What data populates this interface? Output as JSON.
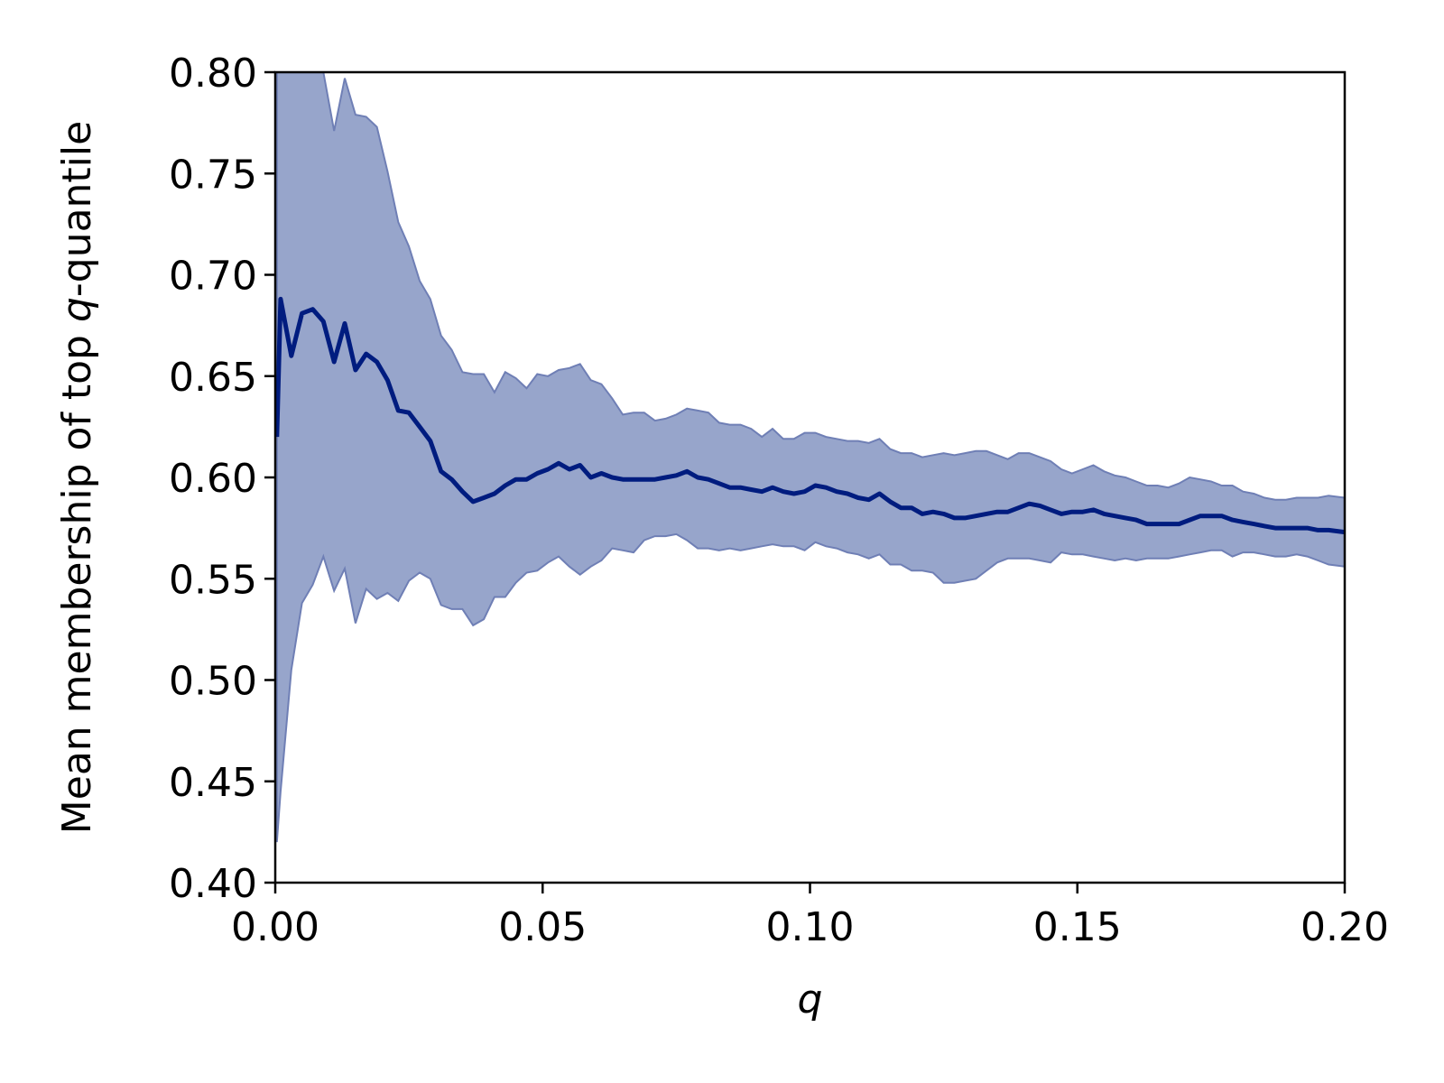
{
  "chart_data": {
    "type": "line",
    "title": "",
    "xlabel": "q",
    "ylabel_parts": [
      "Mean membership of top ",
      "q",
      "-quantile"
    ],
    "xlim": [
      0.0,
      0.2
    ],
    "ylim": [
      0.4,
      0.8
    ],
    "x_ticks": [
      "0.00",
      "0.05",
      "0.10",
      "0.15",
      "0.20"
    ],
    "y_ticks": [
      "0.40",
      "0.45",
      "0.50",
      "0.55",
      "0.60",
      "0.65",
      "0.70",
      "0.75",
      "0.80"
    ],
    "grid": false,
    "legend": "none",
    "colors": {
      "line": "#001c7f",
      "band": "#97a5cb",
      "band_edge": "#6f7fb5"
    },
    "series": [
      {
        "x": [
          0.0003,
          0.001,
          0.003,
          0.005,
          0.007,
          0.009,
          0.011,
          0.013,
          0.015,
          0.017,
          0.019,
          0.021,
          0.023,
          0.025,
          0.027,
          0.029,
          0.031,
          0.033,
          0.035,
          0.037,
          0.039,
          0.041,
          0.043,
          0.045,
          0.047,
          0.049,
          0.051,
          0.053,
          0.055,
          0.057,
          0.059,
          0.061,
          0.063,
          0.065,
          0.067,
          0.069,
          0.071,
          0.073,
          0.075,
          0.077,
          0.079,
          0.081,
          0.083,
          0.085,
          0.087,
          0.089,
          0.091,
          0.093,
          0.095,
          0.097,
          0.099,
          0.101,
          0.103,
          0.105,
          0.107,
          0.109,
          0.111,
          0.113,
          0.115,
          0.117,
          0.119,
          0.121,
          0.123,
          0.125,
          0.127,
          0.129,
          0.131,
          0.133,
          0.135,
          0.137,
          0.139,
          0.141,
          0.143,
          0.145,
          0.147,
          0.149,
          0.151,
          0.153,
          0.155,
          0.157,
          0.159,
          0.161,
          0.163,
          0.165,
          0.167,
          0.169,
          0.171,
          0.173,
          0.175,
          0.177,
          0.179,
          0.181,
          0.183,
          0.185,
          0.187,
          0.189,
          0.191,
          0.193,
          0.195,
          0.197,
          0.2
        ],
        "mean": [
          0.62,
          0.688,
          0.66,
          0.681,
          0.683,
          0.677,
          0.657,
          0.676,
          0.653,
          0.661,
          0.657,
          0.648,
          0.633,
          0.632,
          0.625,
          0.618,
          0.603,
          0.599,
          0.593,
          0.588,
          0.59,
          0.592,
          0.596,
          0.599,
          0.599,
          0.602,
          0.604,
          0.607,
          0.604,
          0.606,
          0.6,
          0.602,
          0.6,
          0.599,
          0.599,
          0.599,
          0.599,
          0.6,
          0.601,
          0.603,
          0.6,
          0.599,
          0.597,
          0.595,
          0.595,
          0.594,
          0.593,
          0.595,
          0.593,
          0.592,
          0.593,
          0.596,
          0.595,
          0.593,
          0.592,
          0.59,
          0.589,
          0.592,
          0.588,
          0.585,
          0.585,
          0.582,
          0.583,
          0.582,
          0.58,
          0.58,
          0.581,
          0.582,
          0.583,
          0.583,
          0.585,
          0.587,
          0.586,
          0.584,
          0.582,
          0.583,
          0.583,
          0.584,
          0.582,
          0.581,
          0.58,
          0.579,
          0.577,
          0.577,
          0.577,
          0.577,
          0.579,
          0.581,
          0.581,
          0.581,
          0.579,
          0.578,
          0.577,
          0.576,
          0.575,
          0.575,
          0.575,
          0.575,
          0.574,
          0.574,
          0.573
        ],
        "upper": [
          0.8,
          0.81,
          0.81,
          0.81,
          0.81,
          0.8,
          0.771,
          0.797,
          0.779,
          0.778,
          0.773,
          0.751,
          0.726,
          0.714,
          0.697,
          0.688,
          0.67,
          0.663,
          0.652,
          0.651,
          0.651,
          0.642,
          0.652,
          0.649,
          0.644,
          0.651,
          0.65,
          0.653,
          0.654,
          0.656,
          0.648,
          0.646,
          0.639,
          0.631,
          0.632,
          0.632,
          0.628,
          0.629,
          0.631,
          0.634,
          0.633,
          0.632,
          0.627,
          0.626,
          0.626,
          0.624,
          0.62,
          0.624,
          0.619,
          0.619,
          0.622,
          0.622,
          0.62,
          0.619,
          0.618,
          0.618,
          0.617,
          0.619,
          0.614,
          0.612,
          0.612,
          0.61,
          0.611,
          0.612,
          0.611,
          0.612,
          0.613,
          0.613,
          0.611,
          0.609,
          0.612,
          0.612,
          0.61,
          0.608,
          0.604,
          0.602,
          0.604,
          0.606,
          0.603,
          0.601,
          0.6,
          0.598,
          0.596,
          0.596,
          0.595,
          0.597,
          0.6,
          0.599,
          0.598,
          0.596,
          0.596,
          0.593,
          0.592,
          0.59,
          0.589,
          0.589,
          0.59,
          0.59,
          0.59,
          0.591,
          0.59
        ],
        "lower": [
          0.42,
          0.445,
          0.505,
          0.538,
          0.547,
          0.561,
          0.544,
          0.555,
          0.528,
          0.545,
          0.54,
          0.543,
          0.539,
          0.549,
          0.553,
          0.55,
          0.537,
          0.535,
          0.535,
          0.527,
          0.53,
          0.541,
          0.541,
          0.548,
          0.553,
          0.554,
          0.558,
          0.561,
          0.556,
          0.552,
          0.556,
          0.559,
          0.565,
          0.564,
          0.563,
          0.569,
          0.571,
          0.571,
          0.572,
          0.569,
          0.565,
          0.565,
          0.564,
          0.565,
          0.564,
          0.565,
          0.566,
          0.567,
          0.566,
          0.566,
          0.564,
          0.568,
          0.566,
          0.565,
          0.563,
          0.562,
          0.56,
          0.562,
          0.557,
          0.557,
          0.554,
          0.554,
          0.553,
          0.548,
          0.548,
          0.549,
          0.55,
          0.554,
          0.558,
          0.56,
          0.56,
          0.56,
          0.559,
          0.558,
          0.563,
          0.562,
          0.562,
          0.561,
          0.56,
          0.559,
          0.56,
          0.559,
          0.56,
          0.56,
          0.56,
          0.561,
          0.562,
          0.563,
          0.564,
          0.564,
          0.561,
          0.563,
          0.563,
          0.562,
          0.561,
          0.561,
          0.562,
          0.561,
          0.559,
          0.557,
          0.556
        ]
      }
    ]
  }
}
